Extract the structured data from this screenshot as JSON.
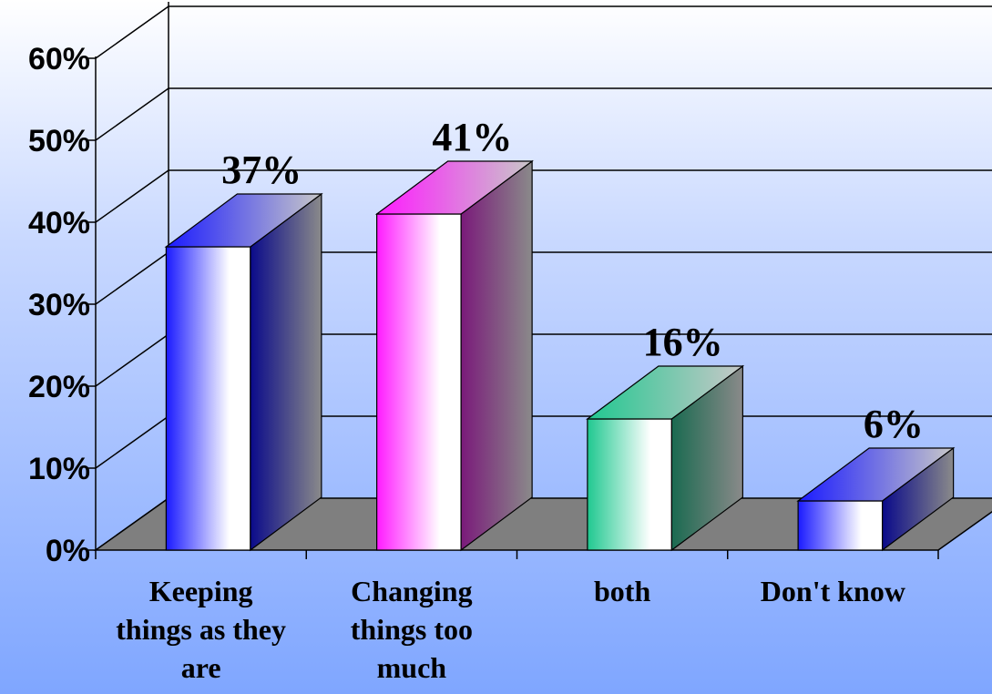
{
  "chart_data": {
    "type": "bar",
    "categories": [
      [
        "Keeping",
        "things as they",
        "are"
      ],
      [
        "Changing",
        "things too",
        "much"
      ],
      [
        "both"
      ],
      [
        "Don't know"
      ]
    ],
    "values": [
      37,
      41,
      16,
      6
    ],
    "data_labels": [
      "37%",
      "41%",
      "16%",
      "6%"
    ],
    "yticks": [
      "0%",
      "10%",
      "20%",
      "30%",
      "40%",
      "50%",
      "60%"
    ],
    "ylim": [
      0,
      60
    ],
    "grid": true,
    "legend": "none",
    "style": "3d",
    "colors": [
      {
        "front_left": "#1a1aff",
        "front_right": "#ffffff",
        "side_dark": "#0a0a8a",
        "side_light": "#8a8a8a"
      },
      {
        "front_left": "#ff1aff",
        "front_right": "#ffffff",
        "side_dark": "#7a1a7a",
        "side_light": "#8a8a8a"
      },
      {
        "front_left": "#20c890",
        "front_right": "#ffffff",
        "side_dark": "#1a6a50",
        "side_light": "#8a8a8a"
      },
      {
        "front_left": "#1a1aff",
        "front_right": "#ffffff",
        "side_dark": "#0a0a8a",
        "side_light": "#8a8a8a"
      }
    ],
    "floor_color": "#7f7f7f"
  }
}
